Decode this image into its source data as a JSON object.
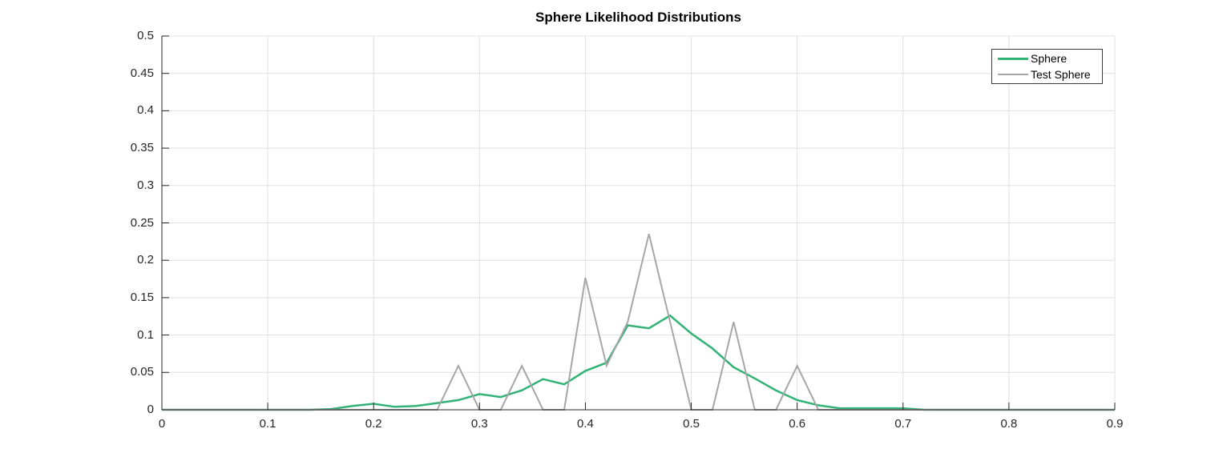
{
  "chart_data": {
    "type": "line",
    "title": "Sphere Likelihood Distributions",
    "xlabel": "",
    "ylabel": "",
    "xlim": [
      0,
      0.9
    ],
    "ylim": [
      0,
      0.5
    ],
    "xtick_values": [
      0,
      0.1,
      0.2,
      0.3,
      0.4,
      0.5,
      0.6,
      0.7,
      0.8,
      0.9
    ],
    "xtick_labels": [
      "0",
      "0.1",
      "0.2",
      "0.3",
      "0.4",
      "0.5",
      "0.6",
      "0.7",
      "0.8",
      "0.9"
    ],
    "ytick_values": [
      0,
      0.05,
      0.1,
      0.15,
      0.2,
      0.25,
      0.3,
      0.35,
      0.4,
      0.45,
      0.5
    ],
    "ytick_labels": [
      "0",
      "0.05",
      "0.1",
      "0.15",
      "0.2",
      "0.25",
      "0.3",
      "0.35",
      "0.4",
      "0.45",
      "0.5"
    ],
    "grid": true,
    "grid_color": "#e0e0e0",
    "axis_color": "#262626",
    "legend": {
      "position": "northeast",
      "entries": [
        "Sphere",
        "Test Sphere"
      ]
    },
    "x": [
      0,
      0.02,
      0.04,
      0.06,
      0.08,
      0.1,
      0.12,
      0.14,
      0.16,
      0.18,
      0.2,
      0.22,
      0.24,
      0.26,
      0.28,
      0.3,
      0.32,
      0.34,
      0.36,
      0.38,
      0.4,
      0.42,
      0.44,
      0.46,
      0.48,
      0.5,
      0.52,
      0.54,
      0.56,
      0.58,
      0.6,
      0.62,
      0.64,
      0.66,
      0.68,
      0.7,
      0.72,
      0.74,
      0.76,
      0.78,
      0.8,
      0.82,
      0.84,
      0.86,
      0.88,
      0.9
    ],
    "series": [
      {
        "name": "Sphere",
        "color": "#32b375",
        "line_width": 2.5,
        "values": [
          0,
          0,
          0,
          0,
          0,
          0,
          0,
          0,
          0.001,
          0.005,
          0.008,
          0.004,
          0.005,
          0.009,
          0.013,
          0.021,
          0.017,
          0.026,
          0.041,
          0.034,
          0.052,
          0.063,
          0.113,
          0.109,
          0.126,
          0.102,
          0.082,
          0.057,
          0.042,
          0.026,
          0.013,
          0.006,
          0.002,
          0.002,
          0.002,
          0.002,
          0,
          0,
          0,
          0,
          0,
          0,
          0,
          0,
          0,
          0
        ]
      },
      {
        "name": "Test Sphere",
        "color": "#a6a6a6",
        "line_width": 2,
        "values": [
          0,
          0,
          0,
          0,
          0,
          0,
          0,
          0,
          0,
          0,
          0,
          0,
          0,
          0,
          0.0588,
          0,
          0,
          0.0588,
          0,
          0,
          0.1765,
          0.0588,
          0.1176,
          0.2353,
          0.1176,
          0,
          0,
          0.1176,
          0,
          0,
          0.0588,
          0,
          0,
          0,
          0,
          0,
          0,
          0,
          0,
          0,
          0,
          0,
          0,
          0,
          0,
          0
        ]
      }
    ]
  }
}
